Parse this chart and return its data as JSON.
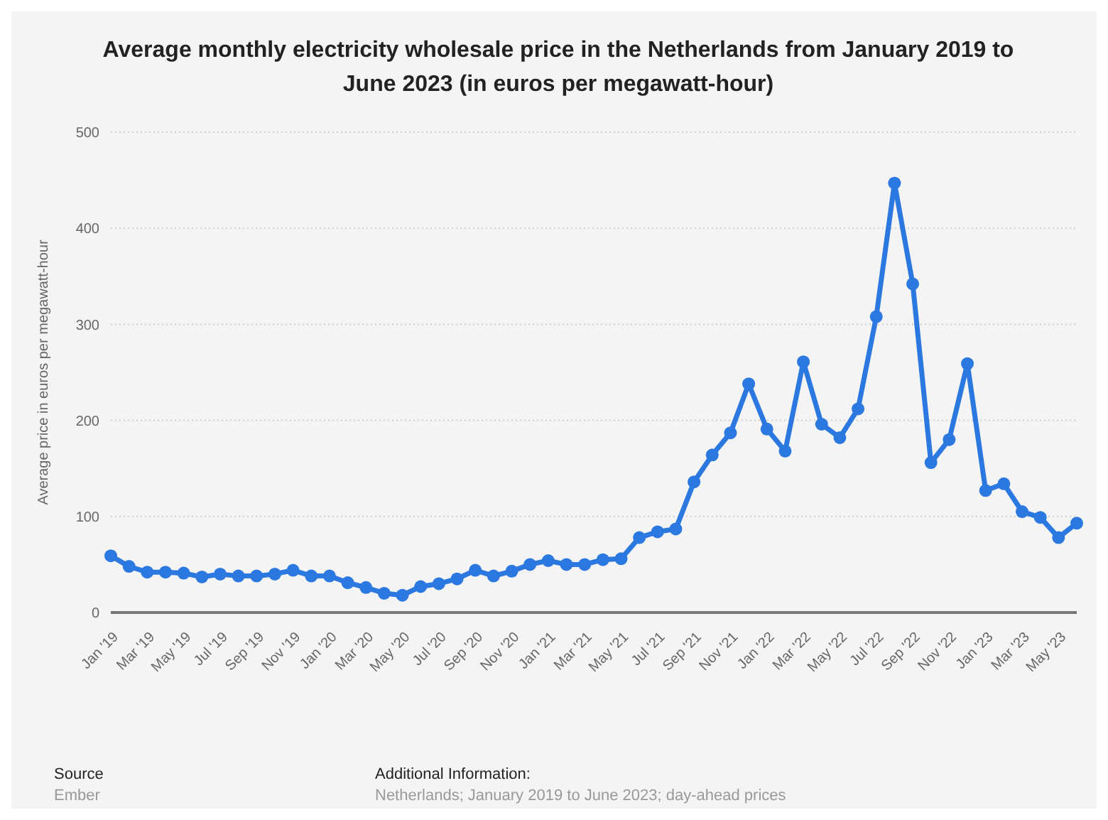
{
  "chart_data": {
    "type": "line",
    "title": "Average monthly electricity wholesale price in the Netherlands from January 2019 to June 2023 (in euros per megawatt-hour)",
    "ylabel": "Average price in euros per megawatt-hour",
    "categories": [
      "Jan '19",
      null,
      "Mar '19",
      null,
      "May '19",
      null,
      "Jul '19",
      null,
      "Sep '19",
      null,
      "Nov '19",
      null,
      "Jan '20",
      null,
      "Mar '20",
      null,
      "May '20",
      null,
      "Jul '20",
      null,
      "Sep '20",
      null,
      "Nov '20",
      null,
      "Jan '21",
      null,
      "Mar '21",
      null,
      "May '21",
      null,
      "Jul '21",
      null,
      "Sep '21",
      null,
      "Nov '21",
      null,
      "Jan '22",
      null,
      "Mar '22",
      null,
      "May '22",
      null,
      "Jul '22",
      null,
      "Sep '22",
      null,
      "Nov '22",
      null,
      "Jan '23",
      null,
      "Mar '23",
      null,
      "May '23",
      null
    ],
    "series": [
      {
        "color": "#2a78e0",
        "values": [
          59,
          48,
          42,
          42,
          41,
          37,
          40,
          38,
          38,
          40,
          44,
          38,
          38,
          31,
          26,
          20,
          18,
          27,
          30,
          35,
          44,
          38,
          43,
          50,
          54,
          50,
          50,
          55,
          56,
          78,
          84,
          87,
          136,
          164,
          187,
          238,
          191,
          168,
          261,
          196,
          182,
          212,
          308,
          447,
          342,
          156,
          180,
          259,
          127,
          134,
          105,
          99,
          78,
          93
        ]
      }
    ],
    "ylim": [
      0,
      500
    ],
    "yticks": [
      0,
      100,
      200,
      300,
      400,
      500
    ],
    "grid": "y",
    "marker": "circle",
    "line_style": "solid",
    "legend": false,
    "annotations": [
      "Source",
      "Ember",
      "Additional Information:",
      "Netherlands; January 2019 to June 2023; day-ahead prices"
    ]
  }
}
